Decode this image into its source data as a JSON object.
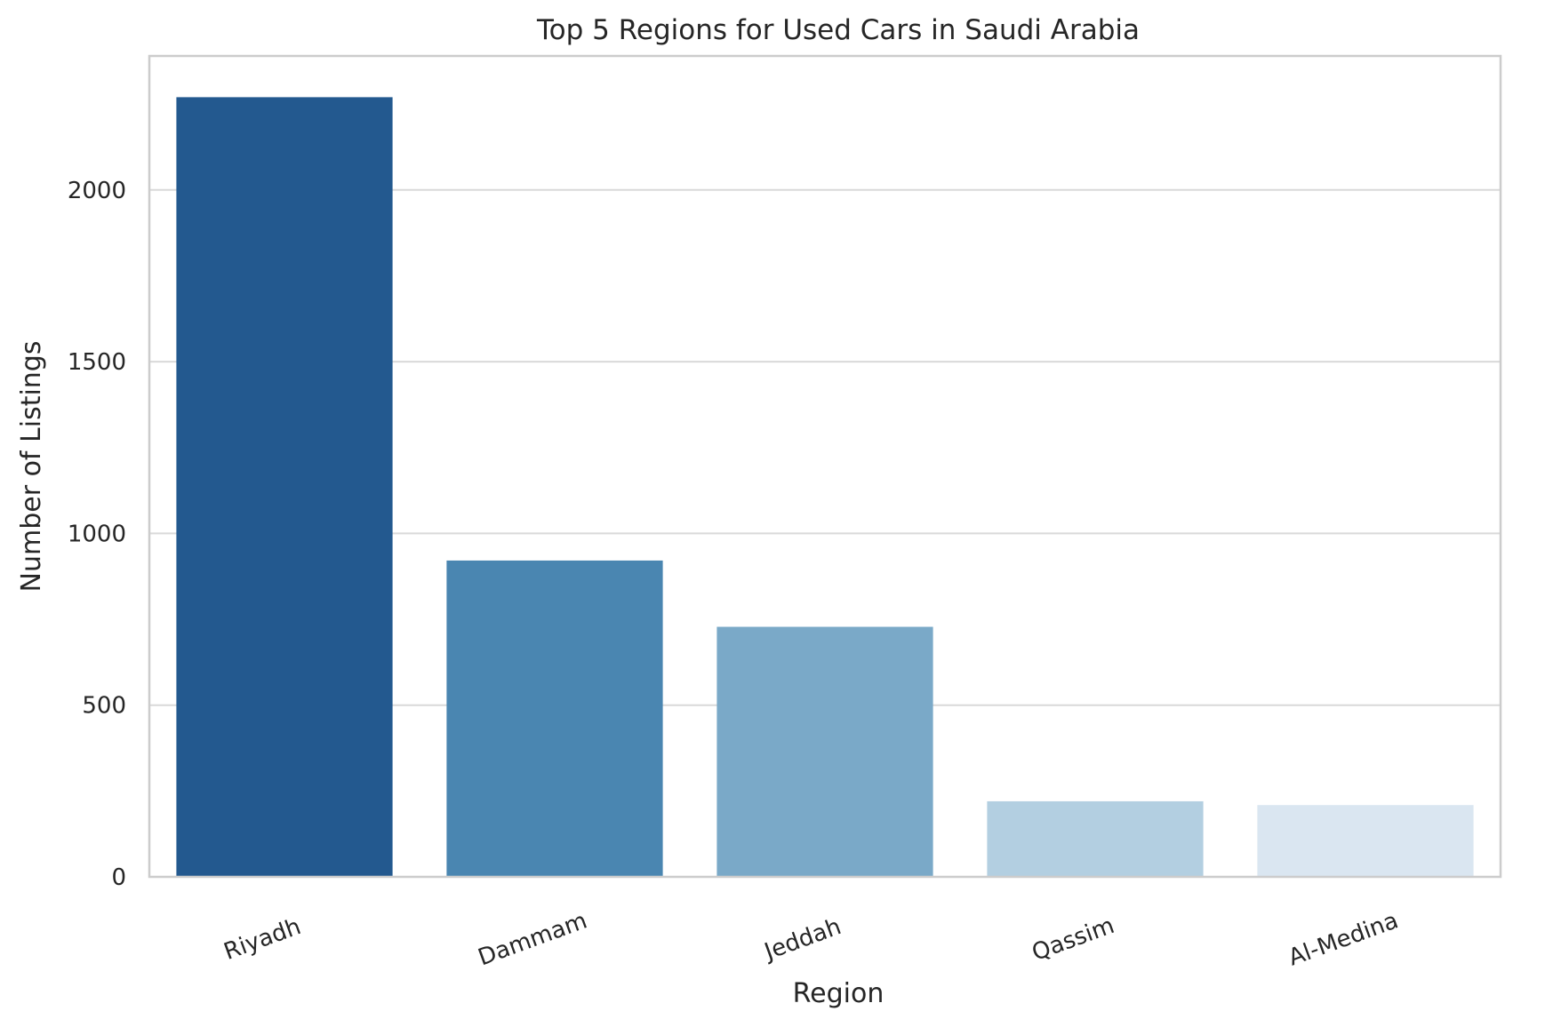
{
  "chart_data": {
    "type": "bar",
    "title": "Top 5 Regions for Used Cars in Saudi Arabia",
    "xlabel": "Region",
    "ylabel": "Number of Listings",
    "categories": [
      "Riyadh",
      "Dammam",
      "Jeddah",
      "Qassim",
      "Al-Medina"
    ],
    "values": [
      2270,
      921,
      728,
      220,
      209
    ],
    "ylim": [
      0,
      2390
    ],
    "yticks": [
      0,
      500,
      1000,
      1500,
      2000
    ],
    "ytick_labels": [
      "0",
      "500",
      "1000",
      "1500",
      "2000"
    ],
    "grid": "horizontal",
    "legend": "none",
    "colors": [
      "#23598f",
      "#4a86b1",
      "#7aa9c8",
      "#b3cfe1",
      "#dae6f1"
    ]
  }
}
